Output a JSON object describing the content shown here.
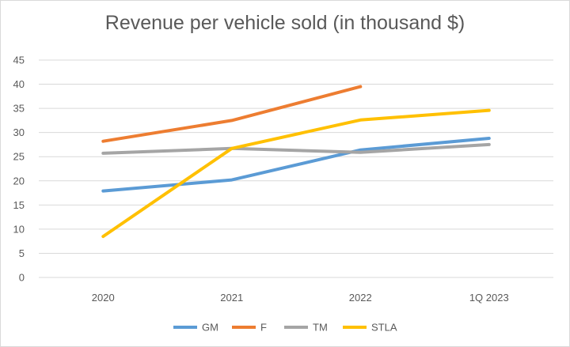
{
  "chart_data": {
    "type": "line",
    "title": "Revenue per vehicle sold (in thousand $)",
    "categories": [
      "2020",
      "2021",
      "2022",
      "1Q 2023"
    ],
    "yticks": [
      "0",
      "5",
      "10",
      "15",
      "20",
      "25",
      "30",
      "35",
      "40",
      "45"
    ],
    "ylim": [
      0,
      45
    ],
    "grid": true,
    "legend_position": "bottom",
    "series": [
      {
        "name": "GM",
        "color": "#5b9bd5",
        "values": [
          17.9,
          20.2,
          26.4,
          28.8
        ]
      },
      {
        "name": "F",
        "color": "#ed7d31",
        "values": [
          28.2,
          32.5,
          39.5,
          null
        ]
      },
      {
        "name": "TM",
        "color": "#a5a5a5",
        "values": [
          25.7,
          26.7,
          25.9,
          27.5
        ]
      },
      {
        "name": "STLA",
        "color": "#ffc000",
        "values": [
          8.5,
          26.7,
          32.6,
          34.6
        ]
      }
    ]
  }
}
